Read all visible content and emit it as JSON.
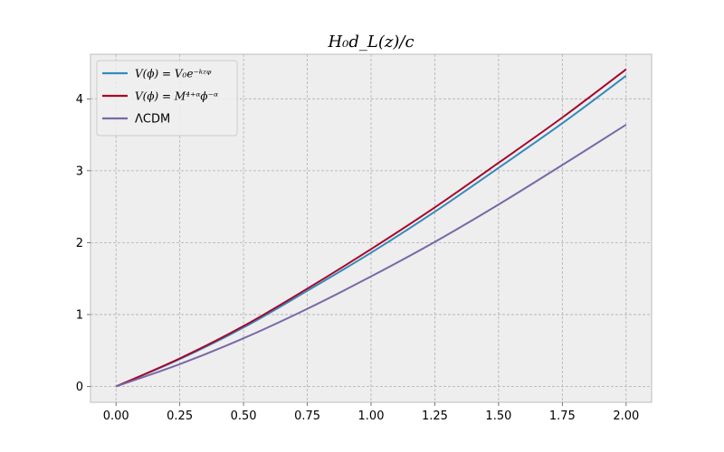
{
  "chart_data": {
    "type": "line",
    "title": "H₀d_L(z)/c",
    "xlabel": "",
    "ylabel": "",
    "xlim": [
      -0.1,
      2.1
    ],
    "ylim": [
      -0.22,
      4.62
    ],
    "xticks": [
      0.0,
      0.25,
      0.5,
      0.75,
      1.0,
      1.25,
      1.5,
      1.75,
      2.0
    ],
    "xtick_labels": [
      "0.00",
      "0.25",
      "0.50",
      "0.75",
      "1.00",
      "1.25",
      "1.50",
      "1.75",
      "2.00"
    ],
    "yticks": [
      0,
      1,
      2,
      3,
      4
    ],
    "ytick_labels": [
      "0",
      "1",
      "2",
      "3",
      "4"
    ],
    "grid": true,
    "legend_position": "top-left",
    "background": "#eeeeee",
    "x": [
      0.0,
      0.25,
      0.5,
      0.75,
      1.0,
      1.25,
      1.5,
      1.75,
      2.0
    ],
    "series": [
      {
        "name": "V(ϕ) = V₀e⁻ᵏᶻᵠ",
        "color": "#348abd",
        "values": [
          0.0,
          0.38,
          0.82,
          1.33,
          1.86,
          2.43,
          3.04,
          3.66,
          4.32
        ]
      },
      {
        "name": "V(ϕ) = M⁴⁺ᵅϕ⁻ᵅ",
        "color": "#a60628",
        "values": [
          0.0,
          0.39,
          0.84,
          1.36,
          1.91,
          2.49,
          3.11,
          3.74,
          4.41
        ]
      },
      {
        "name": "ΛCDM",
        "color": "#7a68a6",
        "values": [
          0.0,
          0.31,
          0.67,
          1.08,
          1.53,
          2.01,
          2.53,
          3.08,
          3.64
        ]
      }
    ]
  }
}
